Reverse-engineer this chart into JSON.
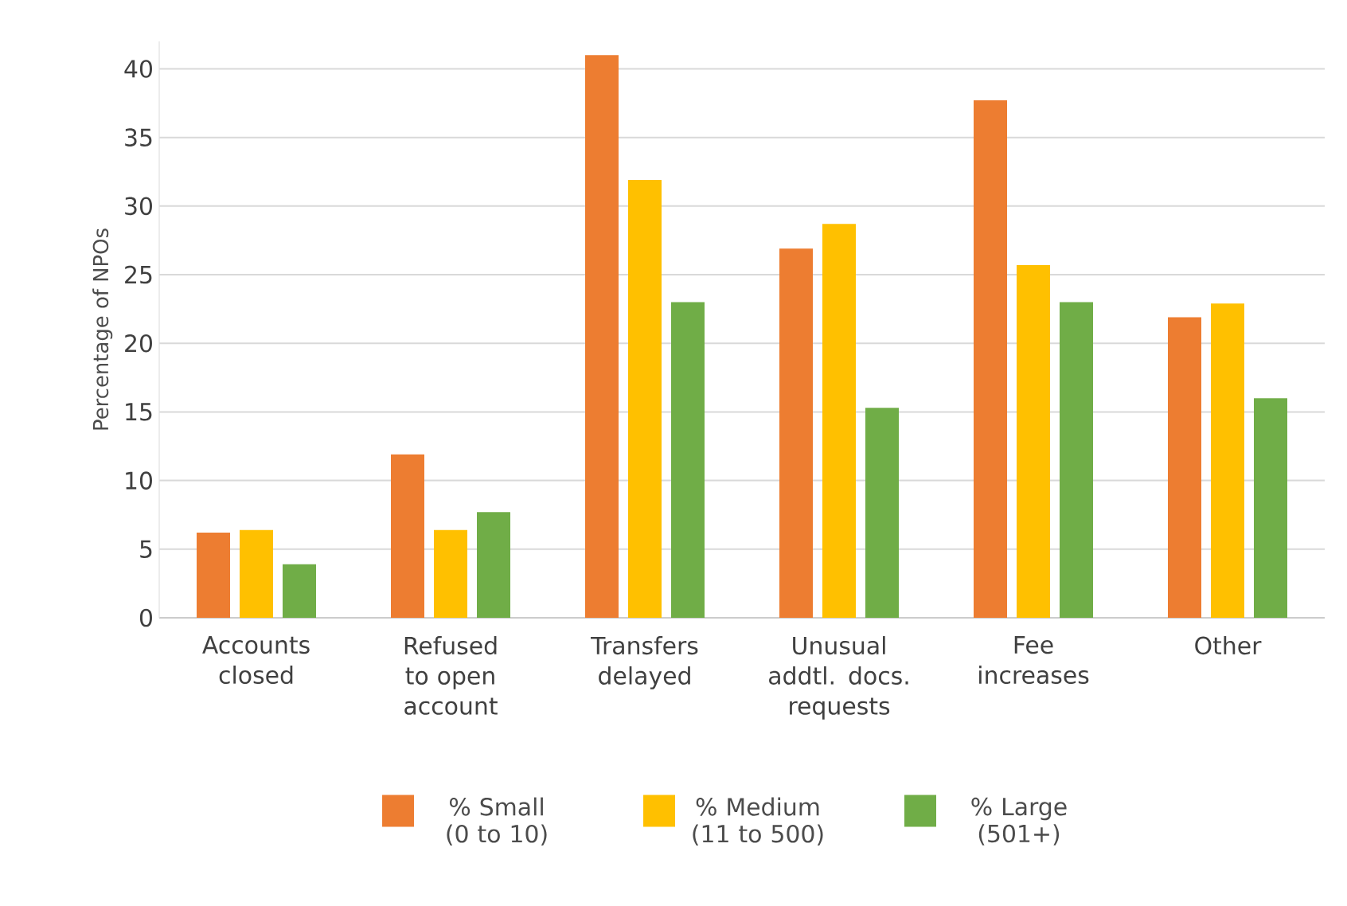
{
  "chart_data": {
    "type": "bar",
    "ylabel": "Percentage of NPOs",
    "categories": [
      "Accounts closed",
      "Refused to open account",
      "Transfers delayed",
      "Unusual addtl. docs. requests",
      "Fee increases",
      "Other"
    ],
    "series": [
      {
        "name": "% Small (0 to 10)",
        "color": "#ed7d31",
        "values": [
          6.2,
          11.9,
          41,
          26.9,
          37.7,
          21.9
        ]
      },
      {
        "name": "% Medium (11 to 500)",
        "color": "#ffc000",
        "values": [
          6.4,
          6.4,
          31.9,
          28.7,
          25.7,
          22.9
        ]
      },
      {
        "name": "% Large (501+)",
        "color": "#70ad47",
        "values": [
          3.9,
          7.7,
          23,
          15.3,
          23,
          16
        ]
      }
    ],
    "ylim": [
      0,
      42
    ],
    "yticks": [
      0,
      5,
      10,
      15,
      20,
      25,
      30,
      35,
      40
    ],
    "grid": "y",
    "legend": "bottom"
  }
}
